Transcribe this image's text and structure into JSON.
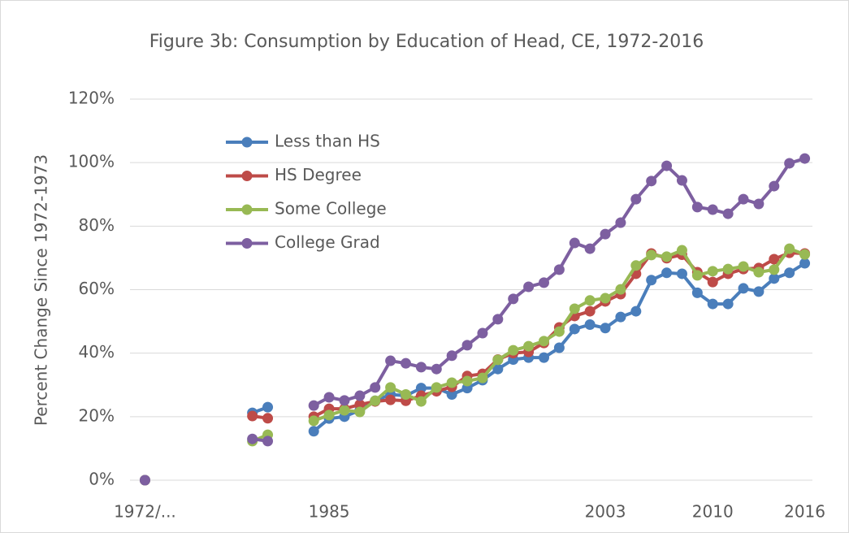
{
  "chart_data": {
    "type": "line",
    "title": "Figure 3b: Consumption by Education of Head, CE, 1972-2016",
    "y_label": "Percent Change Since 1972-1973",
    "categories": [
      "1972/...",
      null,
      null,
      null,
      null,
      null,
      null,
      null,
      null,
      null,
      null,
      null,
      "1985",
      null,
      null,
      null,
      null,
      null,
      null,
      null,
      null,
      null,
      null,
      null,
      null,
      null,
      null,
      null,
      null,
      null,
      "2003",
      null,
      null,
      null,
      null,
      null,
      null,
      "2010",
      null,
      null,
      null,
      null,
      null,
      "2016"
    ],
    "series": [
      {
        "name": "Less than HS",
        "color": "#4a7ebb",
        "values": [
          0,
          null,
          null,
          null,
          null,
          null,
          null,
          21.2,
          23.0,
          null,
          null,
          15.4,
          19.4,
          20,
          22,
          25,
          27,
          26.6,
          29,
          29,
          27,
          29,
          31.5,
          35,
          38,
          38.6,
          38.6,
          41.7,
          47.6,
          49,
          47.9,
          51.4,
          53.2,
          63,
          65.3,
          65,
          59,
          55.5,
          55.5,
          60.4,
          59.4,
          63.5,
          65.3,
          68.3
        ]
      },
      {
        "name": "HS Degree",
        "color": "#be4b48",
        "values": [
          0,
          null,
          null,
          null,
          null,
          null,
          null,
          20.2,
          19.5,
          null,
          null,
          20,
          22.5,
          22.5,
          23.8,
          24.8,
          25.3,
          25,
          26.6,
          28,
          29.4,
          32.8,
          33.5,
          38,
          40,
          40.4,
          43.2,
          48.1,
          51.7,
          53.2,
          56.3,
          58.6,
          65,
          71.4,
          69.9,
          71,
          65.5,
          62.4,
          65,
          66.5,
          66.8,
          69.6,
          71.6,
          71.4
        ]
      },
      {
        "name": "Some College",
        "color": "#98b954",
        "values": [
          0,
          null,
          null,
          null,
          null,
          null,
          null,
          12.3,
          14.3,
          null,
          null,
          18.7,
          20.5,
          22,
          21.5,
          25,
          29.2,
          27,
          24.8,
          29.2,
          30.7,
          31.2,
          32.2,
          37.9,
          40.9,
          42.2,
          43.8,
          46.8,
          54,
          56.6,
          57.3,
          60.1,
          67.6,
          70.9,
          70.4,
          72.4,
          64.5,
          65.8,
          66.5,
          67.3,
          65.5,
          66.3,
          72.9,
          71.1
        ]
      },
      {
        "name": "College Grad",
        "color": "#7d5fa0",
        "values": [
          0,
          null,
          null,
          null,
          null,
          null,
          null,
          13,
          12.3,
          null,
          null,
          23.5,
          26.1,
          25.1,
          26.6,
          29.2,
          37.6,
          36.8,
          35.6,
          35,
          39.2,
          42.5,
          46.3,
          50.7,
          57.1,
          60.9,
          62.2,
          66.3,
          74.7,
          72.9,
          77.5,
          81.1,
          88.5,
          94.2,
          99,
          94.4,
          86,
          85.2,
          83.9,
          88.5,
          87,
          92.6,
          99.8,
          101.3
        ]
      }
    ],
    "ylim": [
      0,
      120
    ],
    "yticks": [
      {
        "value": 0,
        "label": "0%"
      },
      {
        "value": 20,
        "label": "20%"
      },
      {
        "value": 40,
        "label": "40%"
      },
      {
        "value": 60,
        "label": "60%"
      },
      {
        "value": 80,
        "label": "80%"
      },
      {
        "value": 100,
        "label": "100%"
      },
      {
        "value": 120,
        "label": "120%"
      }
    ],
    "grid": true,
    "legend": "upper-left"
  }
}
